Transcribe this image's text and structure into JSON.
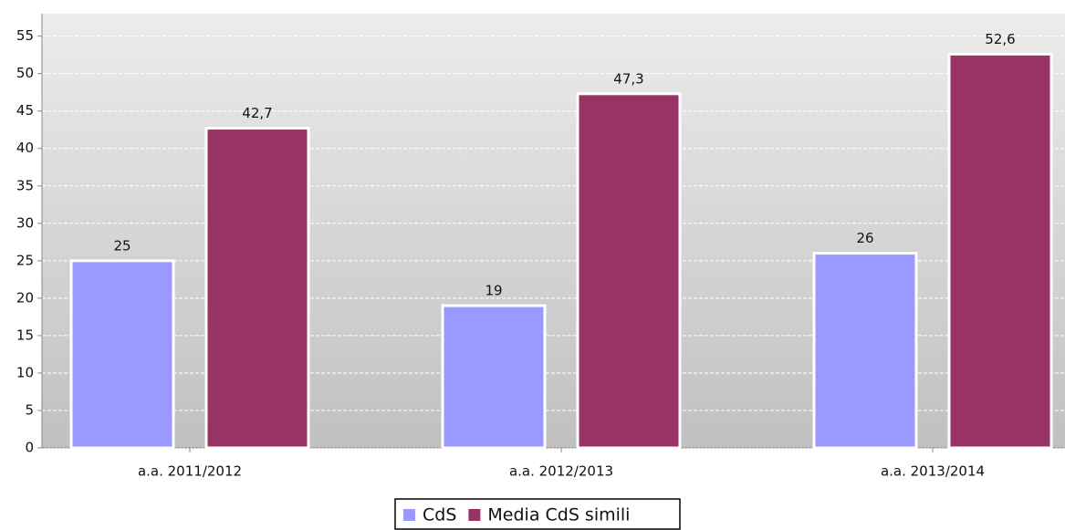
{
  "chart_data": {
    "type": "bar",
    "categories": [
      "a.a. 2011/2012",
      "a.a. 2012/2013",
      "a.a. 2013/2014"
    ],
    "series": [
      {
        "name": "CdS",
        "color": "#9999ff",
        "values": [
          25,
          19,
          26
        ]
      },
      {
        "name": "Media CdS simili",
        "color": "#993366",
        "values": [
          42.7,
          47.3,
          52.6
        ],
        "value_labels": [
          "42,7",
          "47,3",
          "52,6"
        ]
      }
    ],
    "ylim": [
      0,
      58
    ],
    "yticks": [
      0,
      5,
      10,
      15,
      20,
      25,
      30,
      35,
      40,
      45,
      50,
      55
    ],
    "grid": true,
    "legend": "bottom"
  }
}
